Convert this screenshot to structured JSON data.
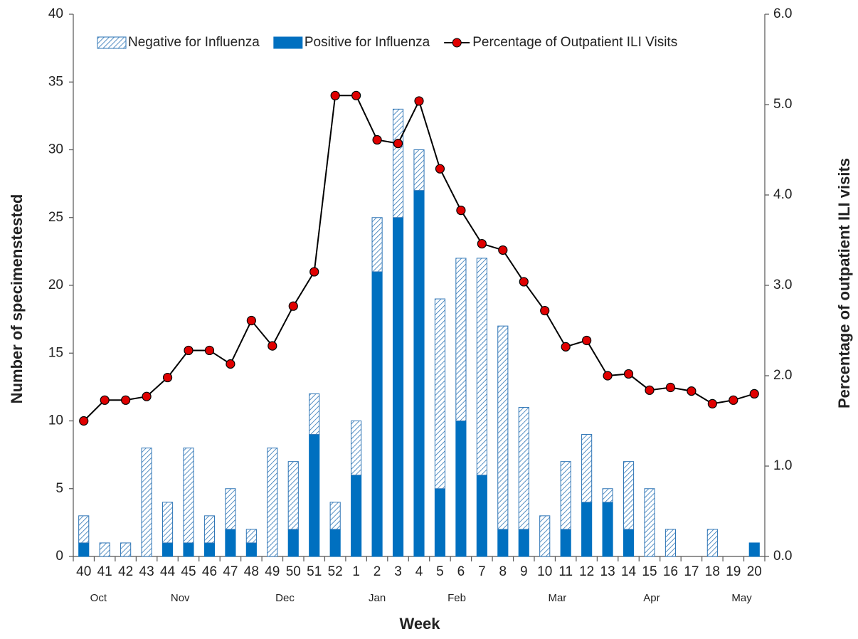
{
  "chart_data": {
    "type": "bar_line",
    "y_label": "Number of specimenstested",
    "y2_label": "Percentage of outpatient ILI visits",
    "x_label": "Week",
    "categories": [
      "40",
      "41",
      "42",
      "43",
      "44",
      "45",
      "46",
      "47",
      "48",
      "49",
      "50",
      "51",
      "52",
      "1",
      "2",
      "3",
      "4",
      "5",
      "6",
      "7",
      "8",
      "9",
      "10",
      "11",
      "12",
      "13",
      "14",
      "15",
      "16",
      "17",
      "18",
      "19",
      "20"
    ],
    "months": [
      "Oct",
      "Nov",
      "Dec",
      "Jan",
      "Feb",
      "Mar",
      "Apr",
      "May"
    ],
    "series": [
      {
        "name": "Negative for Influenza",
        "type": "bar",
        "pattern": "hatch",
        "color": "#2e75b6",
        "values": [
          2,
          1,
          1,
          8,
          3,
          7,
          2,
          3,
          1,
          8,
          5,
          3,
          2,
          4,
          4,
          8,
          3,
          14,
          12,
          16,
          15,
          9,
          3,
          5,
          5,
          1,
          5,
          5,
          2,
          0,
          2,
          0,
          0
        ]
      },
      {
        "name": "Positive for Influenza",
        "type": "bar",
        "color": "#0070c0",
        "values": [
          1,
          0,
          0,
          0,
          1,
          1,
          1,
          2,
          1,
          0,
          2,
          9,
          2,
          6,
          21,
          25,
          27,
          5,
          10,
          6,
          2,
          2,
          0,
          2,
          4,
          4,
          2,
          0,
          0,
          0,
          0,
          0,
          1
        ]
      },
      {
        "name": "Percentage of Outpatient ILI Visits",
        "type": "line",
        "axis": "y2",
        "color": "#000000",
        "marker_color": "#e00000",
        "values": [
          1.5,
          1.73,
          1.73,
          1.77,
          1.98,
          2.28,
          2.28,
          2.13,
          2.61,
          2.33,
          2.77,
          3.15,
          5.1,
          5.1,
          4.61,
          4.57,
          5.04,
          4.29,
          3.83,
          3.46,
          3.39,
          3.04,
          2.72,
          2.32,
          2.39,
          2.0,
          2.02,
          1.84,
          1.87,
          1.83,
          1.69,
          1.73,
          1.8
        ]
      }
    ],
    "ylim": [
      0,
      40
    ],
    "yticks": [
      0,
      5,
      10,
      15,
      20,
      25,
      30,
      35,
      40
    ],
    "y2lim": [
      0,
      6
    ],
    "y2ticks": [
      {
        "value": 0,
        "label": "0.0"
      },
      {
        "value": 1,
        "label": "1.0"
      },
      {
        "value": 2,
        "label": "2.0"
      },
      {
        "value": 3,
        "label": "3.0"
      },
      {
        "value": 4,
        "label": "4.0"
      },
      {
        "value": 5,
        "label": "5.0"
      },
      {
        "value": 6,
        "label": "6.0"
      }
    ],
    "grid": false
  }
}
